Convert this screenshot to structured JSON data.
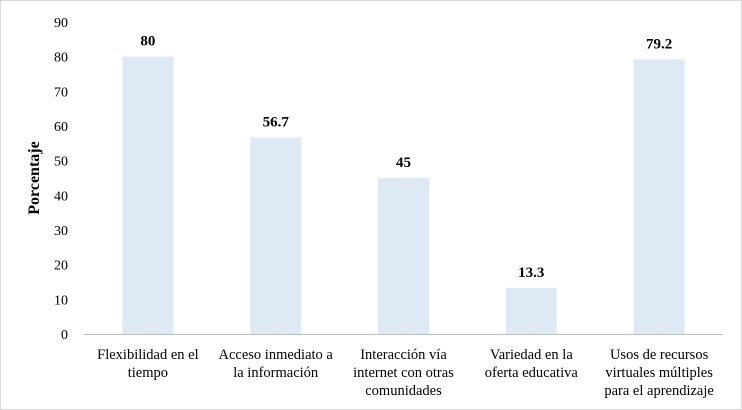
{
  "chart_data": {
    "type": "bar",
    "categories": [
      [
        "Flexibilidad en el",
        "tiempo"
      ],
      [
        "Acceso inmediato a",
        "la información"
      ],
      [
        "Interacción vía",
        "internet con otras",
        "comunidades"
      ],
      [
        "Variedad en la",
        "oferta educativa"
      ],
      [
        "Usos de recursos",
        "virtuales múltiples",
        "para el aprendizaje"
      ]
    ],
    "values": [
      80,
      56.7,
      45,
      13.3,
      79.2
    ],
    "data_labels": [
      "80",
      "56.7",
      "45",
      "13.3",
      "79.2"
    ],
    "title": "",
    "xlabel": "",
    "ylabel": "Porcentaje",
    "ylim": [
      0,
      90
    ],
    "yticks": [
      0,
      10,
      20,
      30,
      40,
      50,
      60,
      70,
      80,
      90
    ],
    "grid": false,
    "legend": "none",
    "bar_color": "#dde9f5",
    "axis_color": "#bfbfbf"
  }
}
